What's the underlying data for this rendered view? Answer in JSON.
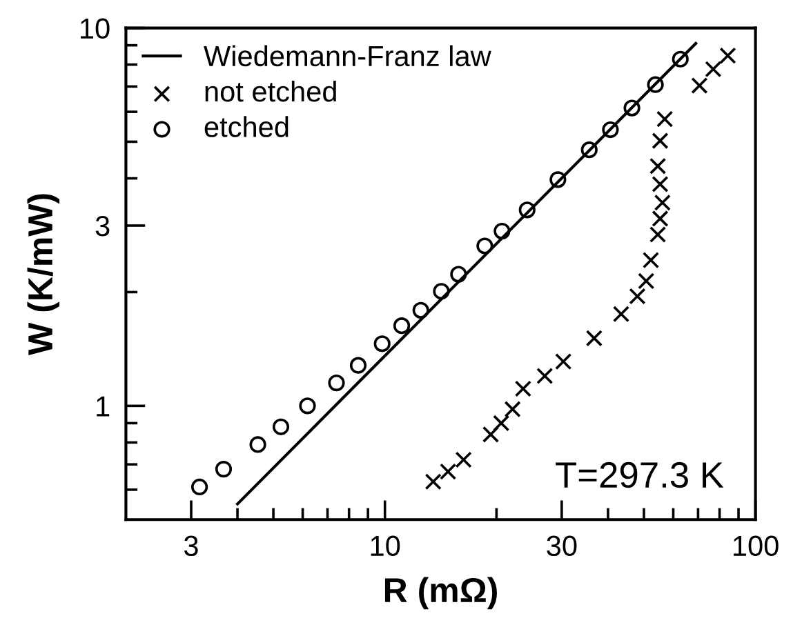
{
  "chart_data": {
    "type": "scatter",
    "xlabel": "R (mΩ)",
    "ylabel": "W (K/mW)",
    "log": "xy",
    "xlim": [
      2,
      100
    ],
    "ylim": [
      0.5,
      10
    ],
    "xticks": [
      3,
      {
        "value": 4,
        "label": null
      },
      {
        "value": 5,
        "label": null
      },
      {
        "value": 6,
        "label": null
      },
      {
        "value": 7,
        "label": null
      },
      {
        "value": 8,
        "label": null
      },
      {
        "value": 9,
        "label": null
      },
      10,
      {
        "value": 20,
        "label": null
      },
      30,
      {
        "value": 40,
        "label": null
      },
      {
        "value": 50,
        "label": null
      },
      {
        "value": 60,
        "label": null
      },
      {
        "value": 70,
        "label": null
      },
      {
        "value": 80,
        "label": null
      },
      {
        "value": 90,
        "label": null
      },
      100
    ],
    "yticks": [
      {
        "value": 0.6,
        "label": null
      },
      {
        "value": 0.7,
        "label": null
      },
      {
        "value": 0.8,
        "label": null
      },
      {
        "value": 0.9,
        "label": null
      },
      1,
      {
        "value": 2,
        "label": null
      },
      3,
      {
        "value": 4,
        "label": null
      },
      {
        "value": 5,
        "label": null
      },
      {
        "value": 6,
        "label": null
      },
      {
        "value": 7,
        "label": null
      },
      {
        "value": 8,
        "label": null
      },
      {
        "value": 9,
        "label": null
      },
      10
    ],
    "grid": false,
    "legend": "top left",
    "annotations": [
      "T=297.3 K"
    ],
    "series": [
      {
        "name": "Wiedemann-Franz law",
        "type": "line",
        "color": "#000000",
        "marker": "none",
        "line_style": "solid",
        "x": [
          4.0,
          69
        ],
        "values": [
          0.55,
          9.1
        ]
      },
      {
        "name": "not etched",
        "color": "#000000",
        "marker": "cross",
        "x": [
          13.5,
          14.8,
          16.3,
          19.3,
          20.6,
          22.1,
          23.6,
          27.0,
          30.3,
          36.7,
          43.4,
          48.0,
          50.7,
          52.2,
          54.5,
          55.3,
          56.1,
          55.3,
          54.5,
          55.3,
          56.9,
          70.6,
          76.9,
          84.2
        ],
        "values": [
          0.63,
          0.67,
          0.72,
          0.84,
          0.9,
          0.98,
          1.11,
          1.2,
          1.31,
          1.51,
          1.75,
          1.95,
          2.14,
          2.43,
          2.84,
          3.13,
          3.45,
          3.86,
          4.31,
          5.03,
          5.74,
          7.04,
          7.78,
          8.45
        ]
      },
      {
        "name": "etched",
        "color": "#000000",
        "marker": "circle",
        "x": [
          3.16,
          3.67,
          4.54,
          5.24,
          6.18,
          7.4,
          8.47,
          9.83,
          11.1,
          12.5,
          14.2,
          15.8,
          18.6,
          20.7,
          24.2,
          29.3,
          35.6,
          40.6,
          46.4,
          53.7,
          62.7
        ],
        "values": [
          0.61,
          0.68,
          0.79,
          0.88,
          1.0,
          1.15,
          1.28,
          1.46,
          1.63,
          1.79,
          2.01,
          2.23,
          2.65,
          2.9,
          3.3,
          3.97,
          4.76,
          5.38,
          6.14,
          7.08,
          8.27
        ]
      }
    ]
  }
}
